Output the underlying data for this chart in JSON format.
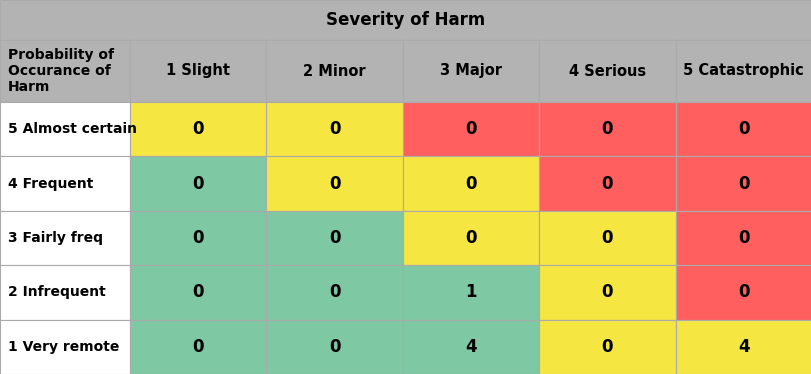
{
  "title": "Severity of Harm",
  "col_header": [
    "1 Slight",
    "2 Minor",
    "3 Major",
    "4 Serious",
    "5 Catastrophic"
  ],
  "row_header": [
    "5 Almost certain",
    "4 Frequent",
    "3 Fairly freq",
    "2 Infrequent",
    "1 Very remote"
  ],
  "row_label_header": "Probability of\nOccurance of\nHarm",
  "values": [
    [
      0,
      0,
      0,
      0,
      0
    ],
    [
      0,
      0,
      0,
      0,
      0
    ],
    [
      0,
      0,
      0,
      0,
      0
    ],
    [
      0,
      0,
      1,
      0,
      0
    ],
    [
      0,
      0,
      4,
      0,
      4
    ]
  ],
  "cell_colors": [
    [
      "#F5E642",
      "#F5E642",
      "#FF5F5F",
      "#FF5F5F",
      "#FF5F5F"
    ],
    [
      "#7EC8A4",
      "#F5E642",
      "#F5E642",
      "#FF5F5F",
      "#FF5F5F"
    ],
    [
      "#7EC8A4",
      "#7EC8A4",
      "#F5E642",
      "#F5E642",
      "#FF5F5F"
    ],
    [
      "#7EC8A4",
      "#7EC8A4",
      "#7EC8A4",
      "#F5E642",
      "#FF5F5F"
    ],
    [
      "#7EC8A4",
      "#7EC8A4",
      "#7EC8A4",
      "#F5E642",
      "#F5E642"
    ]
  ],
  "header_bg": "#B3B3B3",
  "row_label_bg": "#FFFFFF",
  "fig_width": 8.12,
  "fig_height": 3.74,
  "dpi": 100,
  "title_fontsize": 12,
  "col_label_fontsize": 10.5,
  "cell_fontsize": 12,
  "row_label_fontsize": 10,
  "row_header_fontsize": 10
}
